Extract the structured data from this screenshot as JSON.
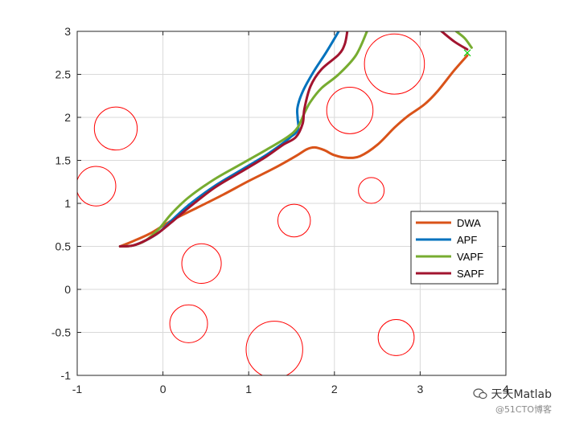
{
  "chart_data": {
    "type": "line",
    "title": "",
    "xlabel": "",
    "ylabel": "",
    "xlim": [
      -1,
      4
    ],
    "ylim": [
      -1,
      3
    ],
    "xticks": [
      -1,
      0,
      1,
      2,
      3,
      4
    ],
    "yticks": [
      -1,
      -0.5,
      0,
      0.5,
      1,
      1.5,
      2,
      2.5,
      3
    ],
    "grid": true,
    "legend_position": "right",
    "obstacles": [
      {
        "cx": -0.55,
        "cy": 1.87,
        "r": 0.25
      },
      {
        "cx": -0.78,
        "cy": 1.2,
        "r": 0.23
      },
      {
        "cx": 2.7,
        "cy": 2.62,
        "r": 0.35
      },
      {
        "cx": 2.18,
        "cy": 2.08,
        "r": 0.27
      },
      {
        "cx": 2.43,
        "cy": 1.15,
        "r": 0.15
      },
      {
        "cx": 1.53,
        "cy": 0.8,
        "r": 0.19
      },
      {
        "cx": 0.45,
        "cy": 0.3,
        "r": 0.23
      },
      {
        "cx": 0.3,
        "cy": -0.4,
        "r": 0.22
      },
      {
        "cx": 1.3,
        "cy": -0.7,
        "r": 0.33
      },
      {
        "cx": 2.72,
        "cy": -0.56,
        "r": 0.21
      }
    ],
    "obstacle_color": "#FF0000",
    "goal": {
      "x": 3.55,
      "y": 2.75,
      "marker": "x",
      "color": "#00CC00"
    },
    "series": [
      {
        "name": "DWA",
        "color": "#D95319",
        "points": [
          [
            -0.5,
            0.5
          ],
          [
            -0.35,
            0.56
          ],
          [
            -0.15,
            0.65
          ],
          [
            0.1,
            0.8
          ],
          [
            0.4,
            0.95
          ],
          [
            0.7,
            1.1
          ],
          [
            1.0,
            1.26
          ],
          [
            1.3,
            1.41
          ],
          [
            1.55,
            1.55
          ],
          [
            1.68,
            1.63
          ],
          [
            1.77,
            1.65
          ],
          [
            1.88,
            1.62
          ],
          [
            2.0,
            1.56
          ],
          [
            2.15,
            1.53
          ],
          [
            2.3,
            1.55
          ],
          [
            2.5,
            1.68
          ],
          [
            2.7,
            1.88
          ],
          [
            2.85,
            2.01
          ],
          [
            3.05,
            2.15
          ],
          [
            3.2,
            2.3
          ],
          [
            3.4,
            2.55
          ],
          [
            3.55,
            2.72
          ]
        ]
      },
      {
        "name": "APF",
        "color": "#0072BD",
        "points": [
          [
            -0.5,
            0.5
          ],
          [
            -0.35,
            0.51
          ],
          [
            -0.2,
            0.57
          ],
          [
            -0.05,
            0.66
          ],
          [
            0.1,
            0.8
          ],
          [
            0.3,
            0.98
          ],
          [
            0.6,
            1.2
          ],
          [
            0.9,
            1.38
          ],
          [
            1.2,
            1.56
          ],
          [
            1.4,
            1.7
          ],
          [
            1.5,
            1.78
          ],
          [
            1.55,
            1.82
          ],
          [
            1.58,
            1.88
          ],
          [
            1.57,
            2.0
          ],
          [
            1.57,
            2.12
          ],
          [
            1.63,
            2.3
          ],
          [
            1.75,
            2.52
          ],
          [
            1.9,
            2.75
          ],
          [
            2.05,
            3.0
          ]
        ]
      },
      {
        "name": "VAPF",
        "color": "#77AC30",
        "points": [
          [
            -0.5,
            0.5
          ],
          [
            -0.35,
            0.51
          ],
          [
            -0.2,
            0.57
          ],
          [
            -0.05,
            0.7
          ],
          [
            0.1,
            0.88
          ],
          [
            0.3,
            1.07
          ],
          [
            0.6,
            1.28
          ],
          [
            0.9,
            1.45
          ],
          [
            1.2,
            1.62
          ],
          [
            1.45,
            1.77
          ],
          [
            1.57,
            1.88
          ],
          [
            1.65,
            2.05
          ],
          [
            1.72,
            2.18
          ],
          [
            1.85,
            2.34
          ],
          [
            2.05,
            2.5
          ],
          [
            2.25,
            2.72
          ],
          [
            2.38,
            3.0
          ]
        ]
      },
      {
        "name": "SAPF",
        "color": "#A2142F",
        "points": [
          [
            -0.5,
            0.5
          ],
          [
            -0.35,
            0.51
          ],
          [
            -0.2,
            0.57
          ],
          [
            -0.05,
            0.66
          ],
          [
            0.1,
            0.78
          ],
          [
            0.3,
            0.95
          ],
          [
            0.6,
            1.18
          ],
          [
            0.9,
            1.36
          ],
          [
            1.2,
            1.54
          ],
          [
            1.4,
            1.68
          ],
          [
            1.55,
            1.77
          ],
          [
            1.63,
            1.93
          ],
          [
            1.65,
            2.1
          ],
          [
            1.72,
            2.36
          ],
          [
            1.85,
            2.56
          ],
          [
            2.05,
            2.73
          ],
          [
            2.12,
            2.85
          ],
          [
            2.15,
            3.0
          ]
        ]
      }
    ],
    "extra_segments": [
      {
        "series": "SAPF",
        "color": "#A2142F",
        "points": [
          [
            3.25,
            3.0
          ],
          [
            3.4,
            2.88
          ],
          [
            3.55,
            2.79
          ]
        ]
      },
      {
        "series": "VAPF",
        "color": "#77AC30",
        "points": [
          [
            3.42,
            3.0
          ],
          [
            3.52,
            2.92
          ],
          [
            3.6,
            2.81
          ]
        ]
      }
    ]
  },
  "watermark": {
    "main": "天天Matlab",
    "sub": "@51CTO博客"
  }
}
